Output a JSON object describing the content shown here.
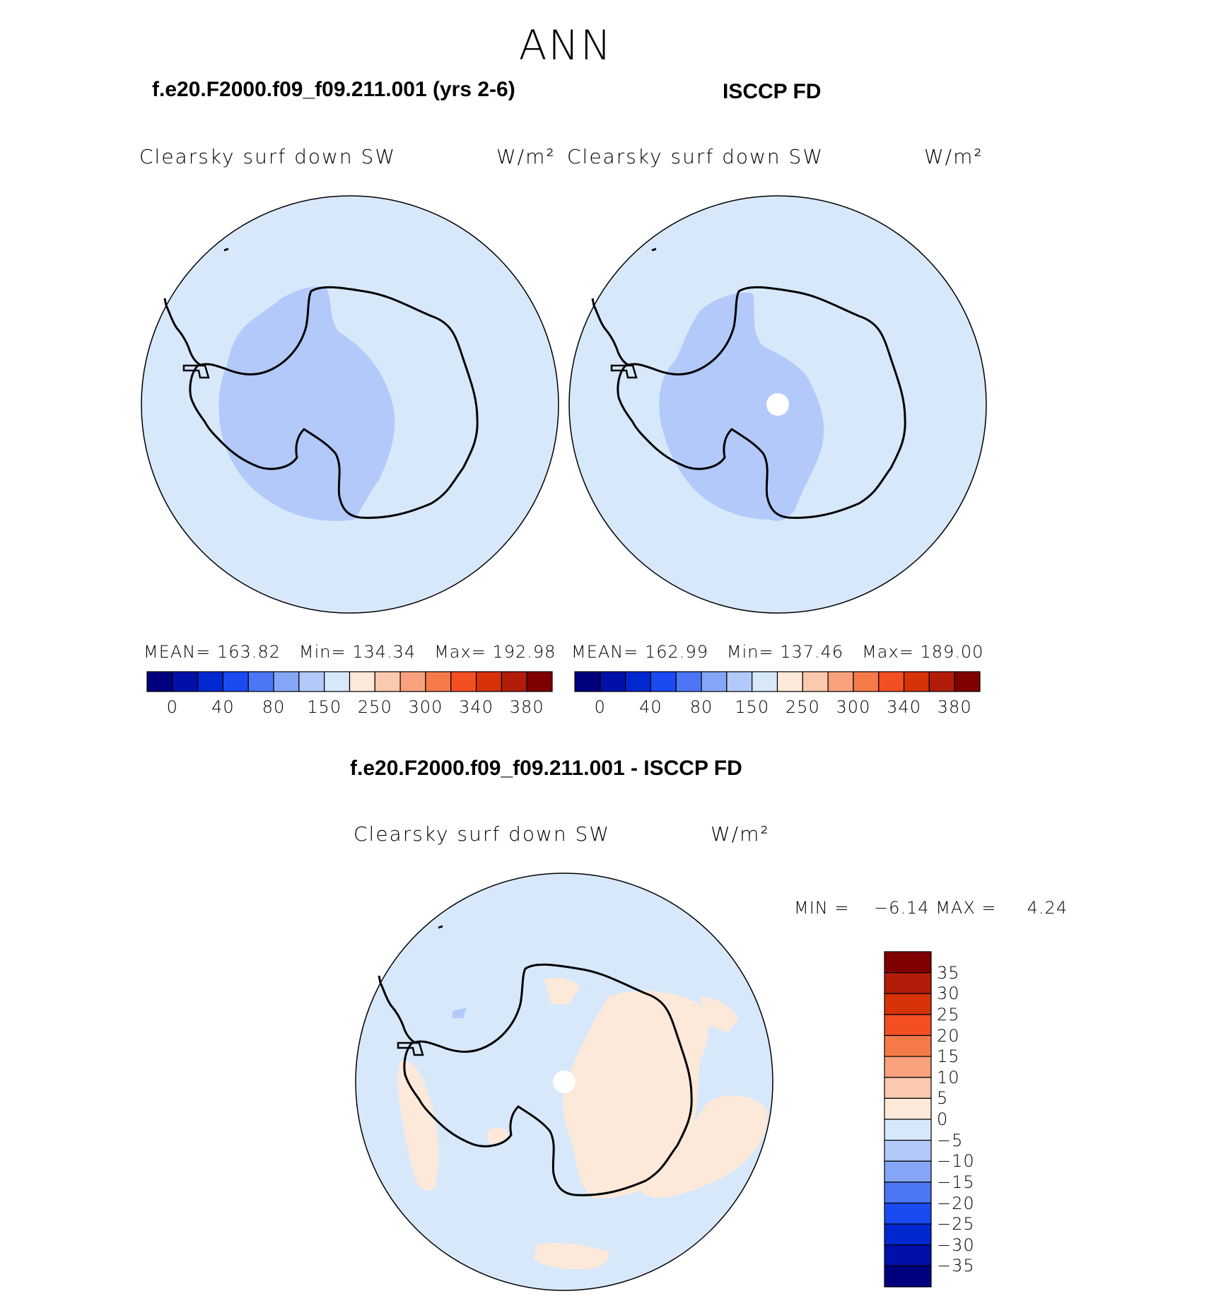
{
  "main_title": "ANN",
  "panels": [
    {
      "title": "f.e20.F2000.f09_f09.211.001 (yrs 2-6)",
      "var_label": "Clearsky  surf  down  SW",
      "units": "W/m²",
      "mean_label": "MEAN=",
      "mean": "163.82",
      "min_label": "Min=",
      "min": "134.34",
      "max_label": "Max=",
      "max": "192.98"
    },
    {
      "title": "ISCCP FD",
      "var_label": "Clearsky  surf  down  SW",
      "units": "W/m²",
      "mean_label": "MEAN=",
      "mean": "162.99",
      "min_label": "Min=",
      "min": "137.46",
      "max_label": "Max=",
      "max": "189.00"
    }
  ],
  "colorbar_top": {
    "ticks": [
      "0",
      "40",
      "80",
      "150",
      "250",
      "300",
      "340",
      "380"
    ],
    "colors": [
      "#00007f",
      "#0010a8",
      "#0028d0",
      "#1a4af2",
      "#4c76f4",
      "#84a6f7",
      "#b2c9fa",
      "#d8e8fb",
      "#fde9d9",
      "#fbc9ad",
      "#f9a07c",
      "#f57a4a",
      "#f44f22",
      "#d73208",
      "#b21c08",
      "#7f0000"
    ]
  },
  "diff_panel": {
    "title": "f.e20.F2000.f09_f09.211.001 - ISCCP FD",
    "var_label": "Clearsky  surf  down  SW",
    "units": "W/m²",
    "min_label": "MIN =",
    "min": "−6.14",
    "max_label": "MAX =",
    "max": "4.24"
  },
  "colorbar_diff": {
    "ticks": [
      "35",
      "30",
      "25",
      "20",
      "15",
      "10",
      "5",
      "0",
      "−5",
      "−10",
      "−15",
      "−20",
      "−25",
      "−30",
      "−35"
    ],
    "colors": [
      "#7f0000",
      "#b21c08",
      "#d73208",
      "#f44f22",
      "#f57a4a",
      "#f9a07c",
      "#fbc9ad",
      "#fde9d9",
      "#d8e8fb",
      "#b2c9fa",
      "#84a6f7",
      "#4c76f4",
      "#1a4af2",
      "#0028d0",
      "#0010a8",
      "#00007f"
    ]
  },
  "map_colors": {
    "ocean": "#d8e8fb",
    "contour_lo": "#b2c9fa",
    "diff_pos": "#fde9d9",
    "missing": "#ffffff"
  }
}
